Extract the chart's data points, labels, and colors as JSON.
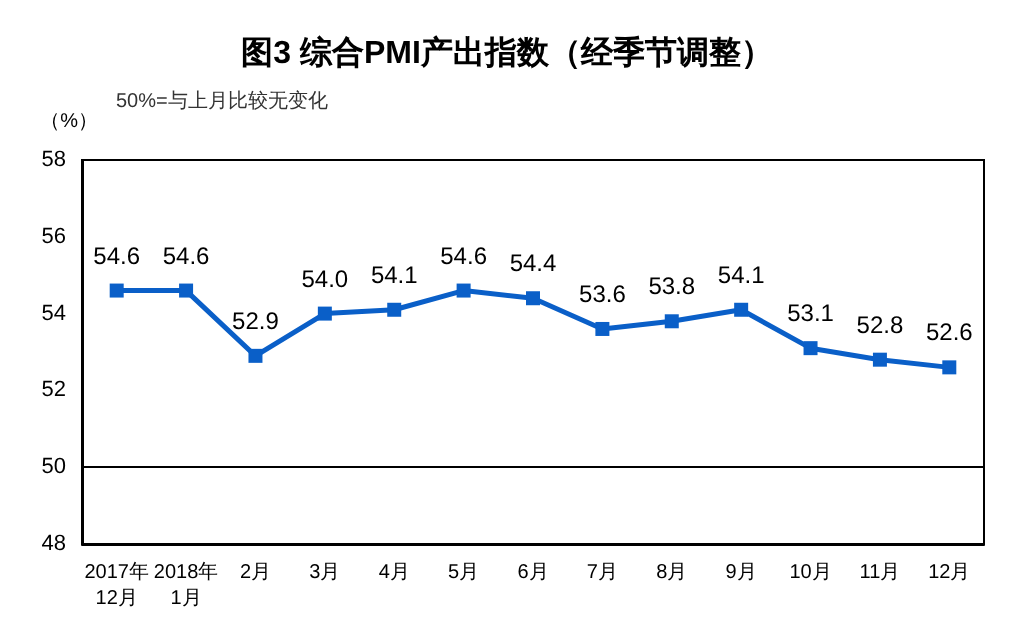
{
  "chart_data": {
    "type": "line",
    "title": "图3 综合PMI产出指数（经季节调整）",
    "ylabel": "（%）",
    "annotations": [
      "50%=与上月比较无变化"
    ],
    "categories": [
      "2017年\n12月",
      "2018年\n1月",
      "2月",
      "3月",
      "4月",
      "5月",
      "6月",
      "7月",
      "8月",
      "9月",
      "10月",
      "11月",
      "12月"
    ],
    "series": [
      {
        "color": "#0a5fc8",
        "values": [
          54.6,
          54.6,
          52.9,
          54.0,
          54.1,
          54.6,
          54.4,
          53.6,
          53.8,
          54.1,
          53.1,
          52.8,
          52.6
        ],
        "value_labels": [
          "54.6",
          "54.6",
          "52.9",
          "54.0",
          "54.1",
          "54.6",
          "54.4",
          "53.6",
          "53.8",
          "54.1",
          "53.1",
          "52.8",
          "52.6"
        ]
      }
    ],
    "ylim": [
      48,
      58
    ],
    "yticks": [
      48,
      50,
      52,
      54,
      56,
      58
    ],
    "ref_lines": [
      {
        "axis": "y",
        "value": 50,
        "color": "#000000"
      }
    ],
    "grid": false,
    "marker": "square",
    "line_style": "solid"
  }
}
